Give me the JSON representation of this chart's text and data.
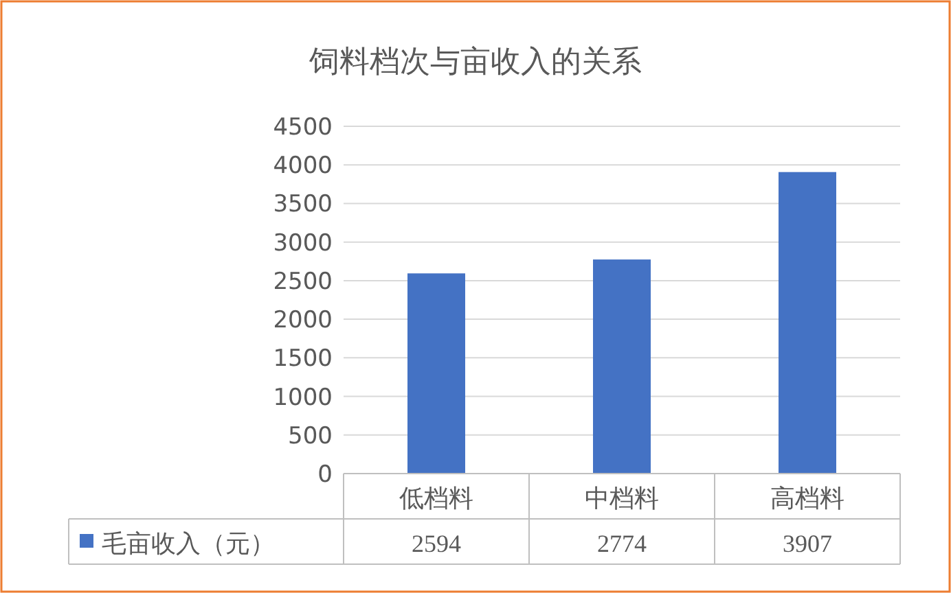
{
  "chart_data": {
    "type": "bar",
    "title": "饲料档次与亩收入的关系",
    "categories": [
      "低档料",
      "中档料",
      "高档料"
    ],
    "series": [
      {
        "name": "毛亩收入（元）",
        "color": "#4472c4",
        "values": [
          2594,
          2774,
          3907
        ]
      }
    ],
    "ylim": [
      0,
      4500
    ],
    "yticks": [
      0,
      500,
      1000,
      1500,
      2000,
      2500,
      3000,
      3500,
      4000,
      4500
    ],
    "grid": "y",
    "legend": "bottom",
    "data_labels": true
  }
}
